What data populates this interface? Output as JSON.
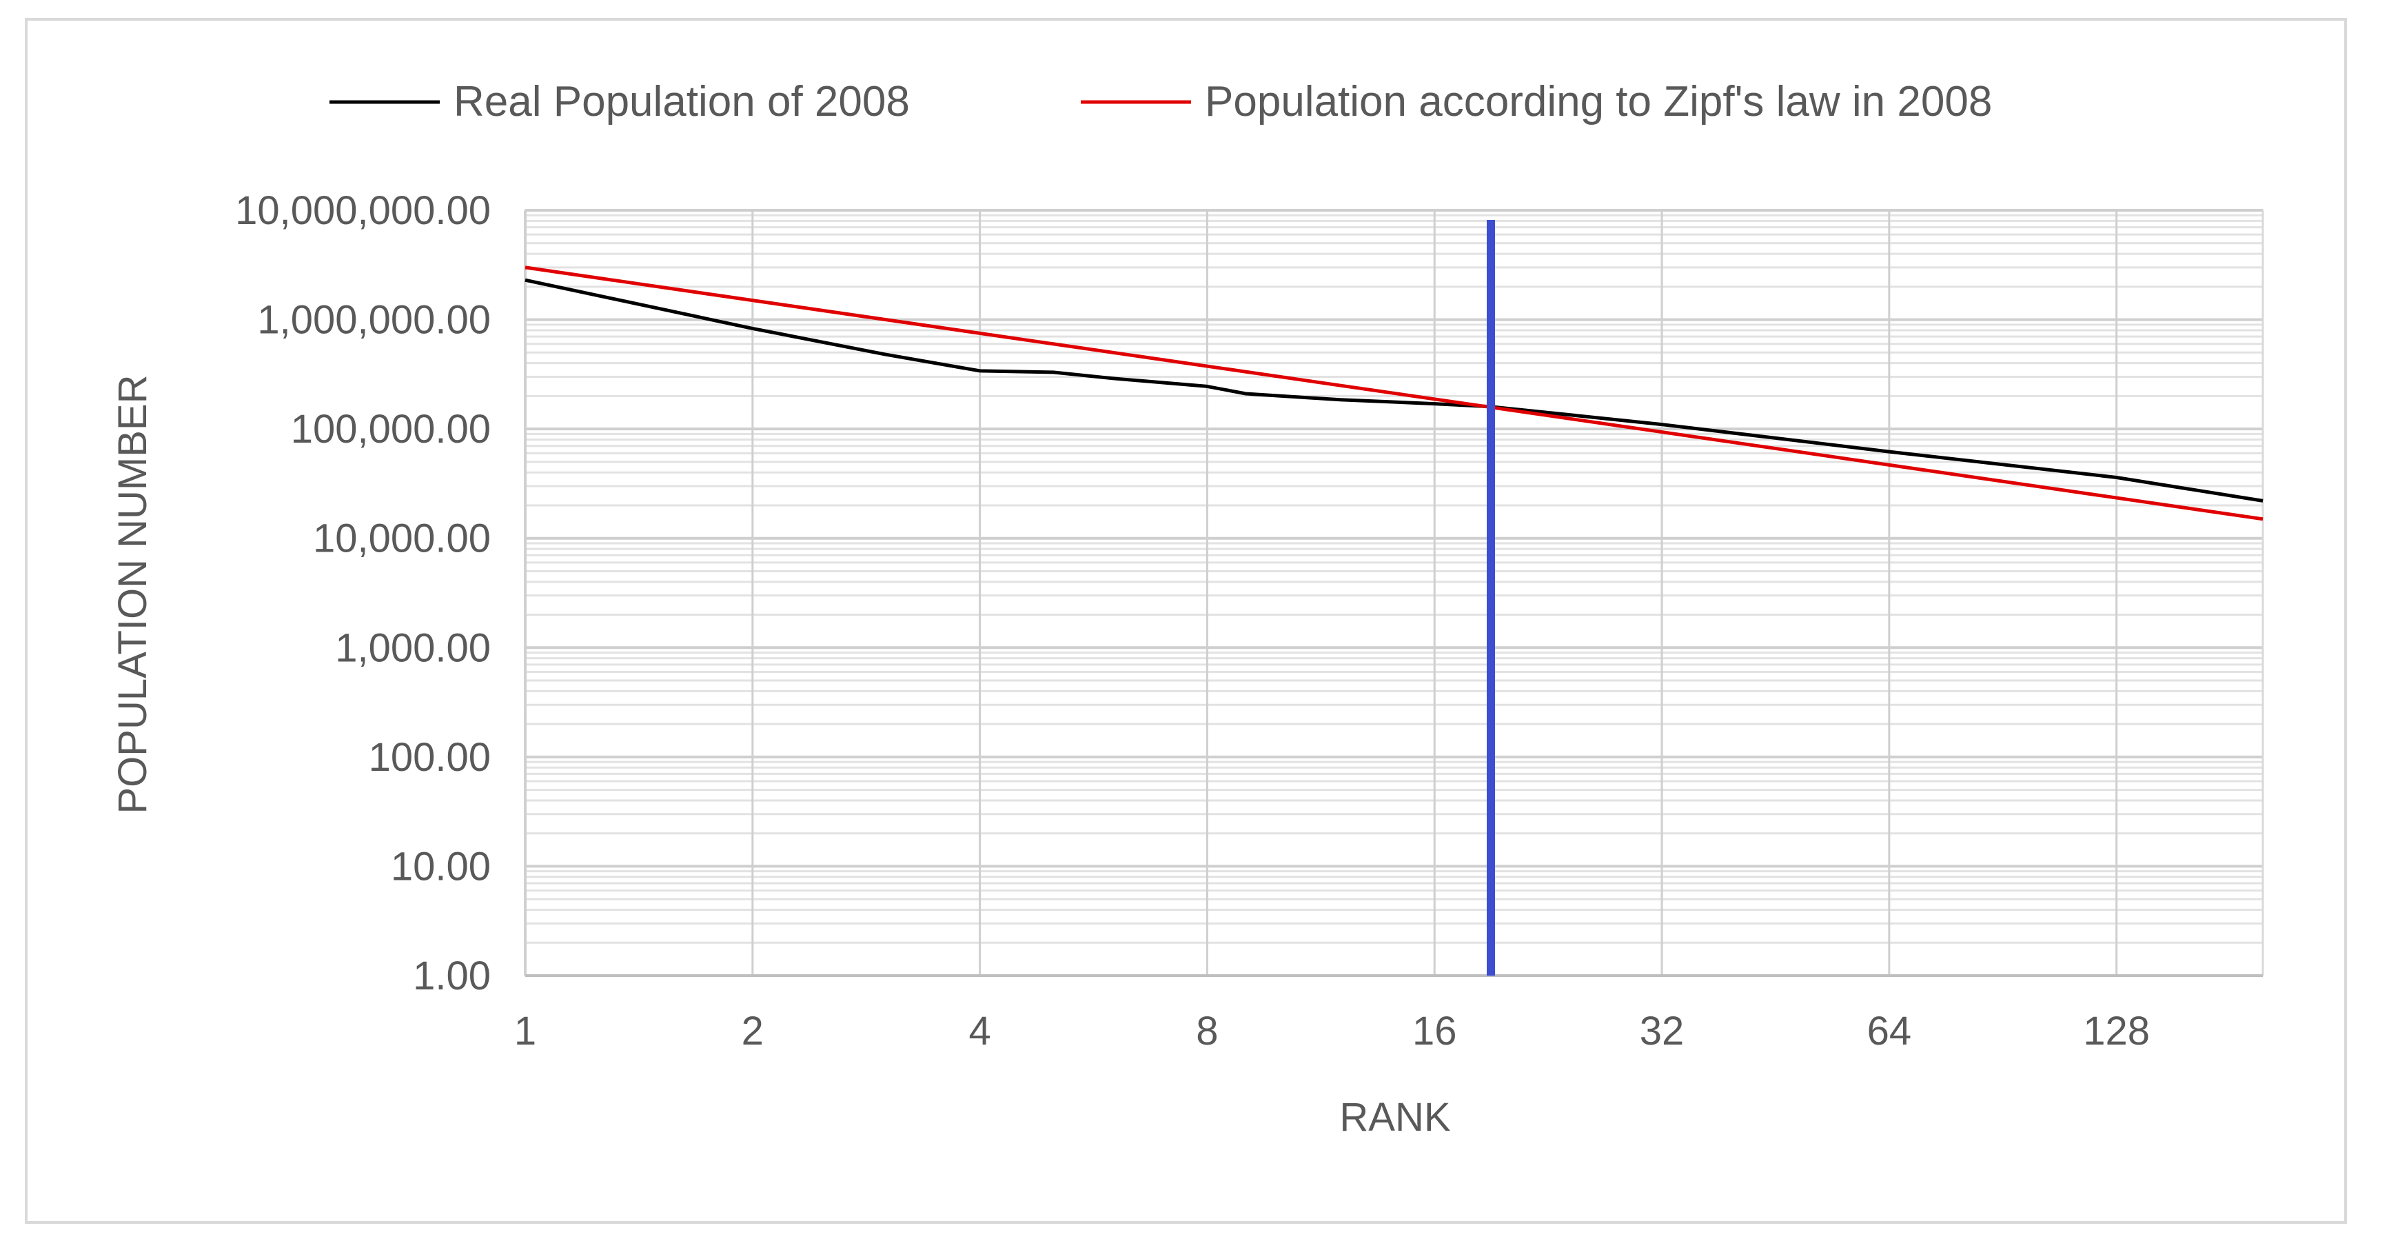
{
  "chart_data": {
    "type": "line",
    "x_scale": "log2",
    "y_scale": "log10",
    "xlabel": "RANK",
    "ylabel": "POPULATION NUMBER",
    "xlim": [
      1,
      200
    ],
    "ylim": [
      1,
      10000000
    ],
    "x_ticks": [
      1,
      2,
      4,
      8,
      16,
      32,
      64,
      128
    ],
    "x_tick_labels": [
      "1",
      "2",
      "4",
      "8",
      "16",
      "32",
      "64",
      "128"
    ],
    "y_ticks": [
      1,
      10,
      100,
      1000,
      10000,
      100000,
      1000000,
      10000000
    ],
    "y_tick_labels": [
      "1.00",
      "10.00",
      "100.00",
      "1,000.00",
      "10,000.00",
      "100,000.00",
      "1,000,000.00",
      "10,000,000.00"
    ],
    "grid": true,
    "legend_position": "top",
    "vertical_marker": {
      "x": 19,
      "color": "#3d4ed0"
    },
    "series": [
      {
        "name": "Real Population of 2008",
        "color": "#000000",
        "points": [
          [
            1,
            2300000
          ],
          [
            2,
            830000
          ],
          [
            3,
            480000
          ],
          [
            4,
            340000
          ],
          [
            5,
            330000
          ],
          [
            6,
            290000
          ],
          [
            8,
            245000
          ],
          [
            9,
            210000
          ],
          [
            12,
            185000
          ],
          [
            16,
            170000
          ],
          [
            19,
            160000
          ],
          [
            32,
            110000
          ],
          [
            64,
            62000
          ],
          [
            128,
            36000
          ],
          [
            200,
            22000
          ]
        ]
      },
      {
        "name": "Population according to Zipf's law in 2008",
        "color": "#e00000",
        "points": [
          [
            1,
            3000000
          ],
          [
            200,
            15000
          ]
        ]
      }
    ]
  }
}
